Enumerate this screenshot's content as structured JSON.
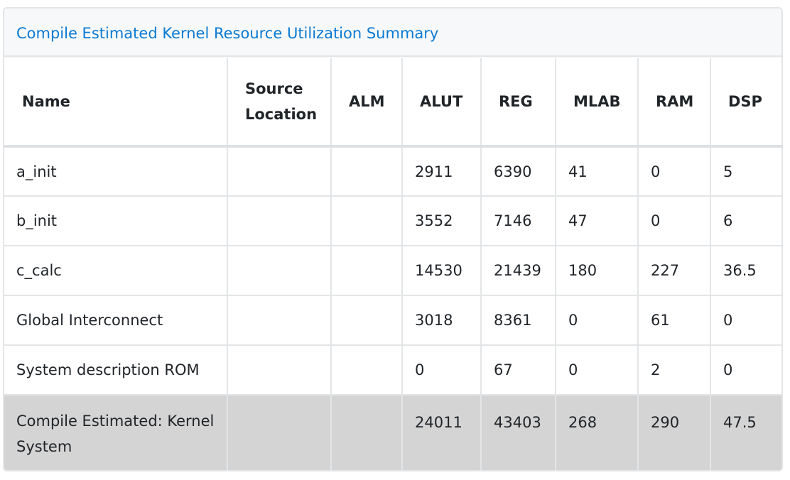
{
  "panel": {
    "title": "Compile Estimated Kernel Resource Utilization Summary"
  },
  "table": {
    "headers": {
      "name": "Name",
      "source_location": "Source Location",
      "alm": "ALM",
      "alut": "ALUT",
      "reg": "REG",
      "mlab": "MLAB",
      "ram": "RAM",
      "dsp": "DSP"
    },
    "rows": [
      {
        "name": "a_init",
        "source_location": "",
        "alm": "",
        "alut": "2911",
        "reg": "6390",
        "mlab": "41",
        "ram": "0",
        "dsp": "5"
      },
      {
        "name": "b_init",
        "source_location": "",
        "alm": "",
        "alut": "3552",
        "reg": "7146",
        "mlab": "47",
        "ram": "0",
        "dsp": "6"
      },
      {
        "name": "c_calc",
        "source_location": "",
        "alm": "",
        "alut": "14530",
        "reg": "21439",
        "mlab": "180",
        "ram": "227",
        "dsp": "36.5"
      },
      {
        "name": "Global Interconnect",
        "source_location": "",
        "alm": "",
        "alut": "3018",
        "reg": "8361",
        "mlab": "0",
        "ram": "61",
        "dsp": "0"
      },
      {
        "name": "System description ROM",
        "source_location": "",
        "alm": "",
        "alut": "0",
        "reg": "67",
        "mlab": "0",
        "ram": "2",
        "dsp": "0"
      }
    ],
    "total": {
      "name": "Compile Estimated: Kernel System",
      "source_location": "",
      "alm": "",
      "alut": "24011",
      "reg": "43403",
      "mlab": "268",
      "ram": "290",
      "dsp": "47.5"
    }
  }
}
